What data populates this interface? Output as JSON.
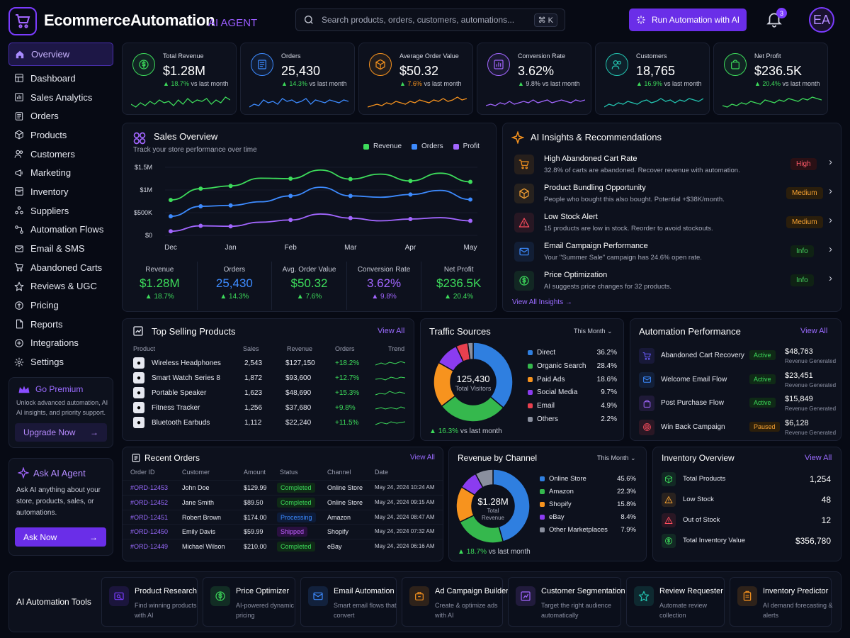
{
  "header": {
    "brand": "EcommerceAutomation",
    "brand_tag": "AI AGENT",
    "search_placeholder": "Search products, orders, customers, automations...",
    "search_shortcut": "⌘ K",
    "run_button": "Run Automation with AI",
    "notifications_count": "3",
    "avatar_initials": "EA"
  },
  "sidebar": {
    "items": [
      {
        "label": "Overview",
        "icon": "home-icon"
      },
      {
        "label": "Dashboard",
        "icon": "dashboard-icon"
      },
      {
        "label": "Sales Analytics",
        "icon": "chart-icon"
      },
      {
        "label": "Orders",
        "icon": "orders-icon"
      },
      {
        "label": "Products",
        "icon": "box-icon"
      },
      {
        "label": "Customers",
        "icon": "users-icon"
      },
      {
        "label": "Marketing",
        "icon": "megaphone-icon"
      },
      {
        "label": "Inventory",
        "icon": "inventory-icon"
      },
      {
        "label": "Suppliers",
        "icon": "suppliers-icon"
      },
      {
        "label": "Automation Flows",
        "icon": "flow-icon"
      },
      {
        "label": "Email & SMS",
        "icon": "mail-icon"
      },
      {
        "label": "Abandoned Carts",
        "icon": "cart-icon"
      },
      {
        "label": "Reviews & UGC",
        "icon": "star-icon"
      },
      {
        "label": "Pricing",
        "icon": "tag-icon"
      },
      {
        "label": "Reports",
        "icon": "report-icon"
      },
      {
        "label": "Integrations",
        "icon": "plug-icon"
      },
      {
        "label": "Settings",
        "icon": "gear-icon"
      }
    ],
    "premium": {
      "title": "Go Premium",
      "text": "Unlock advanced automation, AI AI insights, and priority support.",
      "button": "Upgrade Now"
    },
    "ask": {
      "title": "Ask AI Agent",
      "text": "Ask AI anything about your store, products, sales, or automations.",
      "button": "Ask Now"
    }
  },
  "kpis": [
    {
      "label": "Total Revenue",
      "value": "$1.28M",
      "delta": "18.7%",
      "suffix": "vs last month",
      "color": "#3ddc5b"
    },
    {
      "label": "Orders",
      "value": "25,430",
      "delta": "14.3%",
      "suffix": "vs last month",
      "color": "#3d8bff"
    },
    {
      "label": "Average Order Value",
      "value": "$50.32",
      "delta": "7.6%",
      "suffix": "vs last month",
      "color": "#f7931e"
    },
    {
      "label": "Conversion Rate",
      "value": "3.62%",
      "delta": "9.8%",
      "suffix": "vs last month",
      "color": "#a266ff"
    },
    {
      "label": "Customers",
      "value": "18,765",
      "delta": "16.9%",
      "suffix": "vs last month",
      "color": "#23c4b0"
    },
    {
      "label": "Net Profit",
      "value": "$236.5K",
      "delta": "20.4%",
      "suffix": "vs last month",
      "color": "#3ddc5b"
    }
  ],
  "sales_overview": {
    "title": "Sales Overview",
    "subtitle": "Track your store performance over time",
    "stats": [
      {
        "label": "Revenue",
        "value": "$1.28M",
        "delta": "18.7%",
        "color": "#3ddc5b"
      },
      {
        "label": "Orders",
        "value": "25,430",
        "delta": "14.3%",
        "color": "#3d8bff"
      },
      {
        "label": "Avg. Order Value",
        "value": "$50.32",
        "delta": "7.6%",
        "color": "#3ddc5b"
      },
      {
        "label": "Conversion Rate",
        "value": "3.62%",
        "delta": "9.8%",
        "color": "#a266ff"
      },
      {
        "label": "Net Profit",
        "value": "$236.5K",
        "delta": "20.4%",
        "color": "#3ddc5b"
      }
    ]
  },
  "chart_data": {
    "type": "line",
    "x": [
      "Dec",
      "",
      "Jan",
      "",
      "Feb",
      "",
      "Mar",
      "",
      "Apr",
      "",
      "May"
    ],
    "x_ticks": [
      "Dec",
      "Jan",
      "Feb",
      "Mar",
      "Apr",
      "May"
    ],
    "y_ticks": [
      "$1.5M",
      "$1M",
      "$500K",
      "$0"
    ],
    "ylim": [
      0,
      1500000
    ],
    "legend": "top-right",
    "series": [
      {
        "name": "Revenue",
        "color": "#3ddc5b",
        "values": [
          780000,
          1030000,
          1090000,
          1260000,
          1250000,
          1440000,
          1240000,
          1350000,
          1200000,
          1370000,
          1180000
        ]
      },
      {
        "name": "Orders",
        "color": "#3d8bff",
        "values": [
          420000,
          640000,
          660000,
          740000,
          870000,
          1060000,
          870000,
          840000,
          900000,
          990000,
          790000
        ]
      },
      {
        "name": "Profit",
        "color": "#a266ff",
        "values": [
          90000,
          210000,
          200000,
          290000,
          340000,
          470000,
          380000,
          320000,
          360000,
          390000,
          320000
        ]
      }
    ]
  },
  "insights": {
    "title": "AI Insights & Recommendations",
    "view_all": "View All Insights",
    "items": [
      {
        "title": "High Abandoned Cart Rate",
        "desc": "32.8% of carts are abandoned. Recover revenue with automation.",
        "badge": "High",
        "level": "high",
        "icon": "cart-icon",
        "color": "#f7931e"
      },
      {
        "title": "Product Bundling Opportunity",
        "desc": "People who bought this also bought. Potential +$38K/month.",
        "badge": "Medium",
        "level": "med",
        "icon": "box-icon",
        "color": "#f7a232"
      },
      {
        "title": "Low Stock Alert",
        "desc": "15 products are low in stock. Reorder to avoid stockouts.",
        "badge": "Medium",
        "level": "med",
        "icon": "warning-icon",
        "color": "#ff4d5e"
      },
      {
        "title": "Email Campaign Performance",
        "desc": "Your \"Summer Sale\" campaign has 24.6% open rate.",
        "badge": "Info",
        "level": "info",
        "icon": "mail-icon",
        "color": "#3d8bff"
      },
      {
        "title": "Price Optimization",
        "desc": "AI suggests price changes for 32 products.",
        "badge": "Info",
        "level": "info",
        "icon": "dollar-icon",
        "color": "#3ddc5b"
      }
    ]
  },
  "top_products": {
    "title": "Top Selling Products",
    "view_all": "View All",
    "headers": [
      "Product",
      "Sales",
      "Revenue",
      "Orders",
      "Trend"
    ],
    "rows": [
      {
        "name": "Wireless Headphones",
        "sales": "2,543",
        "revenue": "$127,150",
        "orders": "+18.2%"
      },
      {
        "name": "Smart Watch Series 8",
        "sales": "1,872",
        "revenue": "$93,600",
        "orders": "+12.7%"
      },
      {
        "name": "Portable Speaker",
        "sales": "1,623",
        "revenue": "$48,690",
        "orders": "+15.3%"
      },
      {
        "name": "Fitness Tracker",
        "sales": "1,256",
        "revenue": "$37,680",
        "orders": "+9.8%"
      },
      {
        "name": "Bluetooth Earbuds",
        "sales": "1,112",
        "revenue": "$22,240",
        "orders": "+11.5%"
      }
    ]
  },
  "traffic": {
    "title": "Traffic Sources",
    "period": "This Month",
    "center_value": "125,430",
    "center_label": "Total Visitors",
    "delta": "16.3%",
    "delta_suffix": "vs last month",
    "items": [
      {
        "label": "Direct",
        "pct": "36.2%",
        "value": 36.2,
        "color": "#2f7fe0"
      },
      {
        "label": "Organic Search",
        "pct": "28.4%",
        "value": 28.4,
        "color": "#35b84d"
      },
      {
        "label": "Paid Ads",
        "pct": "18.6%",
        "value": 18.6,
        "color": "#f7931e"
      },
      {
        "label": "Social Media",
        "pct": "9.7%",
        "value": 9.7,
        "color": "#8b3cf0"
      },
      {
        "label": "Email",
        "pct": "4.9%",
        "value": 4.9,
        "color": "#e8404f"
      },
      {
        "label": "Others",
        "pct": "2.2%",
        "value": 2.2,
        "color": "#8a8f9e"
      }
    ]
  },
  "automation": {
    "title": "Automation Performance",
    "view_all": "View All",
    "revenue_label": "Revenue Generated",
    "items": [
      {
        "name": "Abandoned Cart Recovery",
        "status": "Active",
        "amount": "$48,763",
        "icon": "cart-icon",
        "color": "#6a5cff"
      },
      {
        "name": "Welcome Email Flow",
        "status": "Active",
        "amount": "$23,451",
        "icon": "mail-icon",
        "color": "#3d8bff"
      },
      {
        "name": "Post Purchase Flow",
        "status": "Active",
        "amount": "$15,849",
        "icon": "bag-icon",
        "color": "#a266ff"
      },
      {
        "name": "Win Back Campaign",
        "status": "Paused",
        "amount": "$6,128",
        "icon": "target-icon",
        "color": "#ff4d5e"
      }
    ]
  },
  "recent_orders": {
    "title": "Recent Orders",
    "view_all": "View All",
    "headers": [
      "Order ID",
      "Customer",
      "Amount",
      "Status",
      "Channel",
      "Date"
    ],
    "rows": [
      {
        "id": "#ORD-12453",
        "customer": "John Doe",
        "amount": "$129.99",
        "status": "Completed",
        "st": "done",
        "channel": "Online Store",
        "date": "May 24, 2024 10:24 AM"
      },
      {
        "id": "#ORD-12452",
        "customer": "Jane Smith",
        "amount": "$89.50",
        "status": "Completed",
        "st": "done",
        "channel": "Online Store",
        "date": "May 24, 2024 09:15 AM"
      },
      {
        "id": "#ORD-12451",
        "customer": "Robert Brown",
        "amount": "$174.00",
        "status": "Processing",
        "st": "proc",
        "channel": "Amazon",
        "date": "May 24, 2024 08:47 AM"
      },
      {
        "id": "#ORD-12450",
        "customer": "Emily Davis",
        "amount": "$59.99",
        "status": "Shipped",
        "st": "ship",
        "channel": "Shopify",
        "date": "May 24, 2024 07:32 AM"
      },
      {
        "id": "#ORD-12449",
        "customer": "Michael Wilson",
        "amount": "$210.00",
        "status": "Completed",
        "st": "done",
        "channel": "eBay",
        "date": "May 24, 2024 06:16 AM"
      }
    ]
  },
  "revenue_channel": {
    "title": "Revenue by Channel",
    "period": "This Month",
    "center_value": "$1.28M",
    "center_label": "Total Revenue",
    "delta": "18.7%",
    "delta_suffix": "vs last month",
    "items": [
      {
        "label": "Online Store",
        "pct": "45.6%",
        "value": 45.6,
        "color": "#2f7fe0"
      },
      {
        "label": "Amazon",
        "pct": "22.3%",
        "value": 22.3,
        "color": "#35b84d"
      },
      {
        "label": "Shopify",
        "pct": "15.8%",
        "value": 15.8,
        "color": "#f7931e"
      },
      {
        "label": "eBay",
        "pct": "8.4%",
        "value": 8.4,
        "color": "#8b3cf0"
      },
      {
        "label": "Other Marketplaces",
        "pct": "7.9%",
        "value": 7.9,
        "color": "#8a8f9e"
      }
    ]
  },
  "inventory": {
    "title": "Inventory Overview",
    "view_all": "View All",
    "items": [
      {
        "label": "Total Products",
        "value": "1,254",
        "color": "#3ddc5b"
      },
      {
        "label": "Low Stock",
        "value": "48",
        "color": "#f7a232"
      },
      {
        "label": "Out of Stock",
        "value": "12",
        "color": "#ff4d5e"
      },
      {
        "label": "Total Inventory Value",
        "value": "$356,780",
        "color": "#3ddc5b"
      }
    ]
  },
  "tools": {
    "title": "AI Automation Tools",
    "items": [
      {
        "title": "Product Research",
        "desc": "Find winning products with AI",
        "color": "#7b3cff",
        "icon": "research-icon"
      },
      {
        "title": "Price Optimizer",
        "desc": "AI-powered dynamic pricing",
        "color": "#3ddc5b",
        "icon": "dollar-icon"
      },
      {
        "title": "Email Automation",
        "desc": "Smart email flows that convert",
        "color": "#3d8bff",
        "icon": "mail-icon"
      },
      {
        "title": "Ad Campaign Builder",
        "desc": "Create & optimize ads with AI",
        "color": "#f7931e",
        "icon": "ad-icon"
      },
      {
        "title": "Customer Segmentation",
        "desc": "Target the right audience automatically",
        "color": "#a266ff",
        "icon": "segment-icon"
      },
      {
        "title": "Review Requester",
        "desc": "Automate review collection",
        "color": "#23c4b0",
        "icon": "star-icon"
      },
      {
        "title": "Inventory Predictor",
        "desc": "AI demand forecasting & alerts",
        "color": "#f7931e",
        "icon": "clipboard-icon"
      }
    ]
  }
}
